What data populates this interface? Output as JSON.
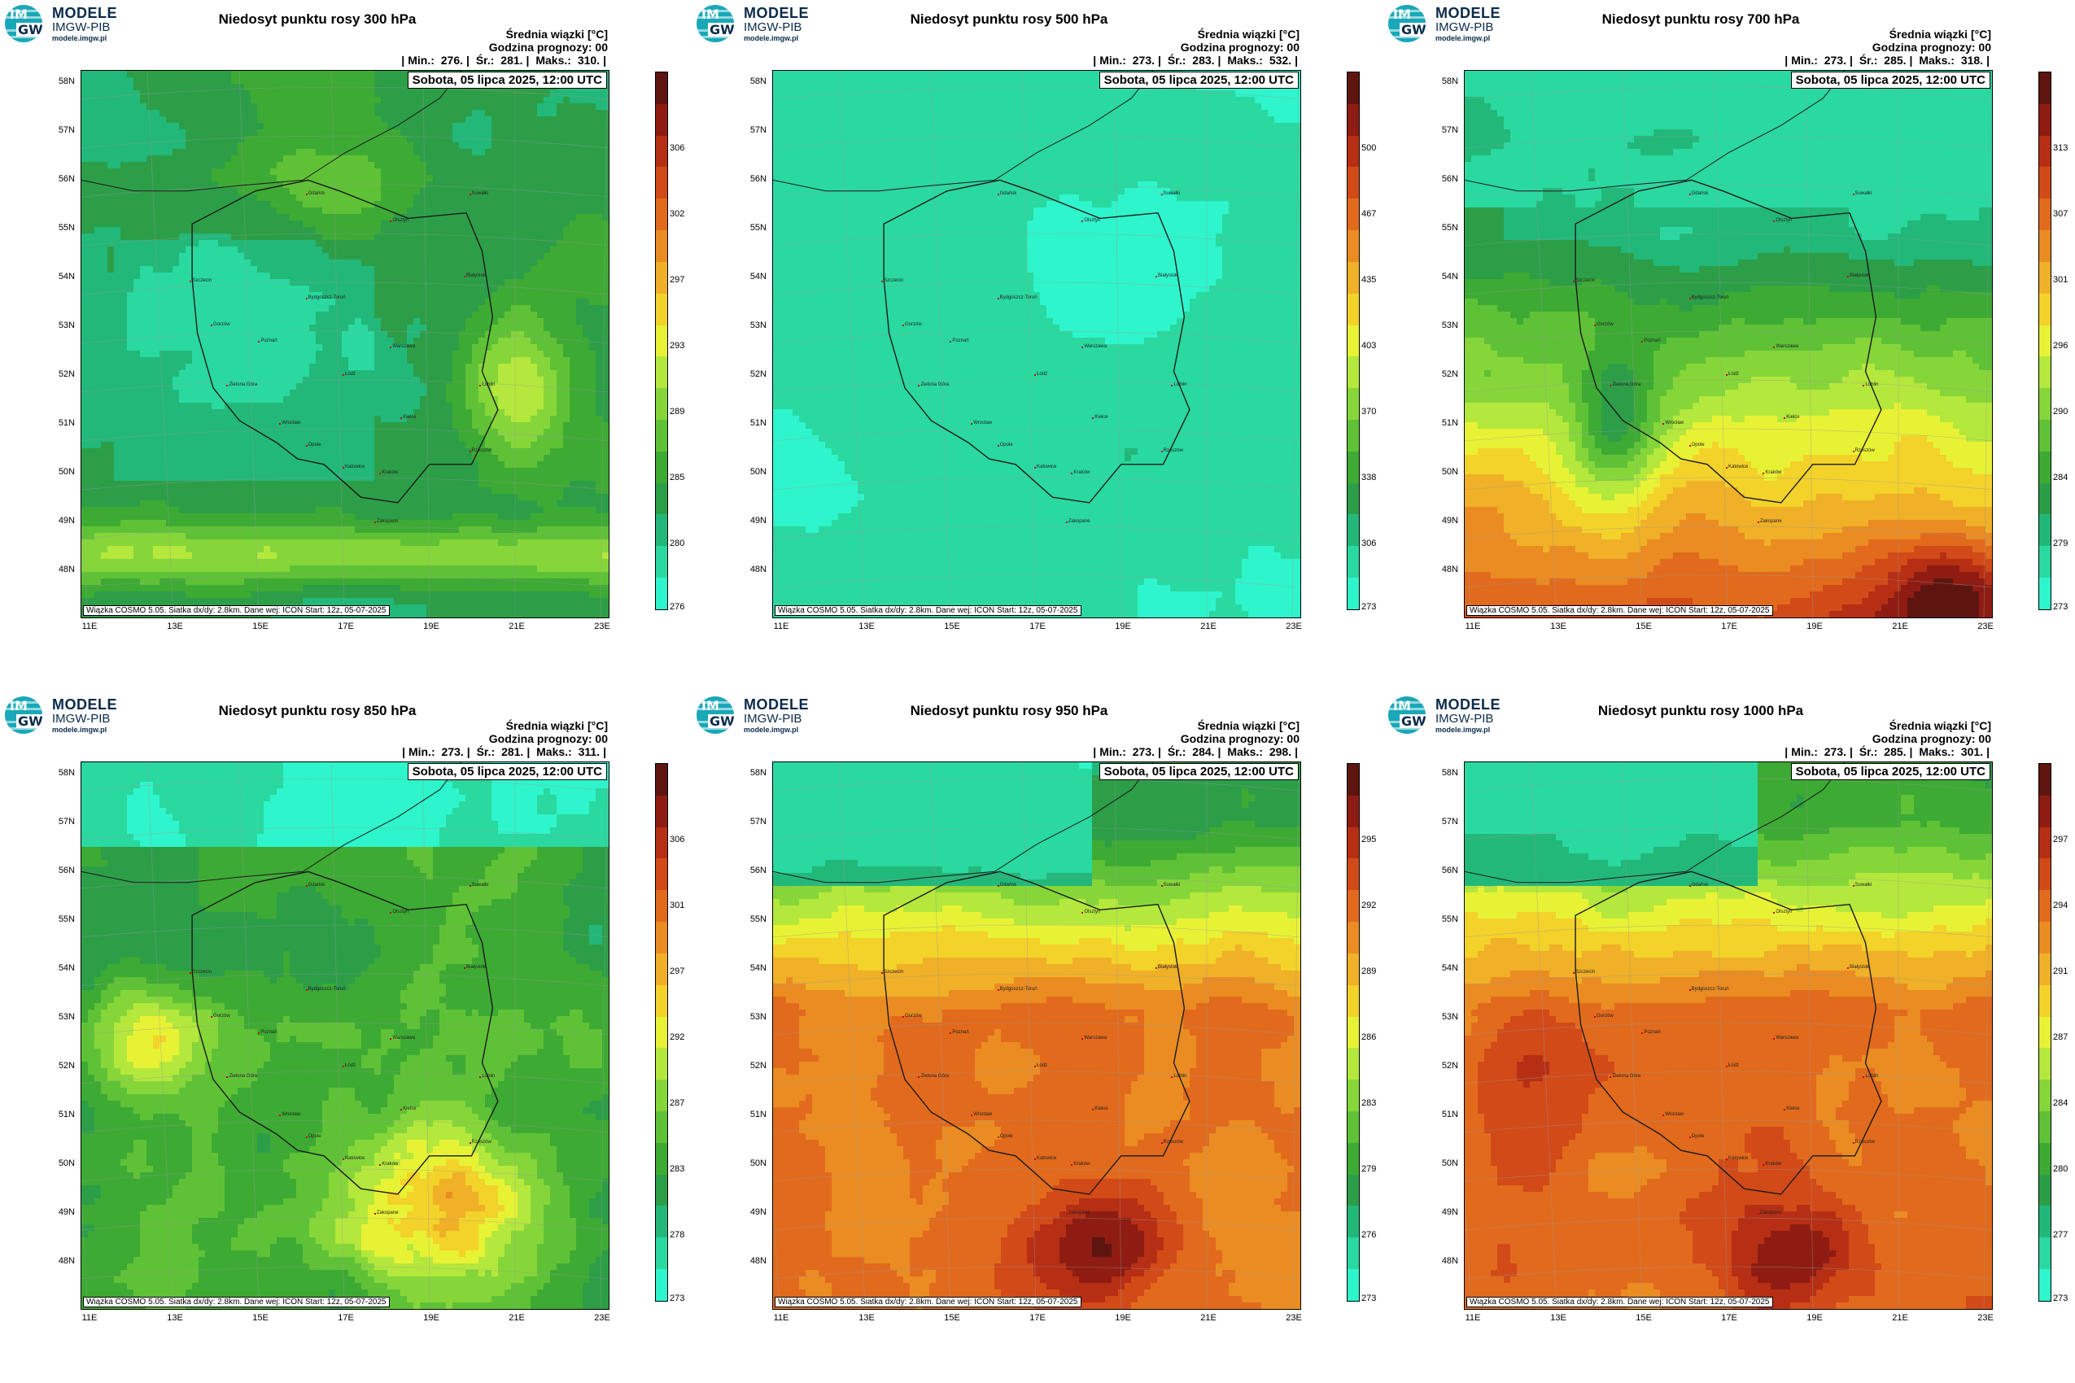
{
  "logo": {
    "title": "MODELE",
    "subtitle": "IMGW-PIB",
    "url": "modele.imgw.pl",
    "mark_top": "IM",
    "mark_bottom": "GW"
  },
  "common": {
    "unit_label": "Średnia wiązki [°C]",
    "forecast_hour": "Godzina prognozy: 00",
    "min_label": "Min.:",
    "mean_label": "Śr.:",
    "max_label": "Maks.:",
    "date": "Sobota, 05 lipca 2025, 12:00 UTC",
    "footer": "Wiązka COSMO 5.05. Siatka dx/dy: 2.8km. Dane wej: ICON Start: 12z, 05-07-2025",
    "lat_labels": [
      "58N",
      "57N",
      "56N",
      "55N",
      "54N",
      "53N",
      "52N",
      "51N",
      "50N",
      "49N",
      "48N"
    ],
    "lon_labels": [
      "11E",
      "13E",
      "15E",
      "17E",
      "19E",
      "21E",
      "23E"
    ],
    "cities": [
      "Gdańsk",
      "Olsztyn",
      "Suwałki",
      "Szczecin",
      "Białystok",
      "Bydgoszcz-Toruń",
      "Gorzów",
      "Poznań",
      "Warszawa",
      "Zielona Góra",
      "Łódź",
      "Lublin",
      "Wrocław",
      "Kielce",
      "Opole",
      "Rzeszów",
      "Katowice",
      "Kraków",
      "Zakopane"
    ]
  },
  "colors": {
    "scale": [
      "#2ef5cc",
      "#29d9a0",
      "#22b879",
      "#2d9e48",
      "#3daa34",
      "#5fc236",
      "#86d63a",
      "#b4e83c",
      "#e8f234",
      "#f3d22a",
      "#f0b027",
      "#ea8c22",
      "#e26a1d",
      "#d24a18",
      "#b62f14",
      "#8e1c12",
      "#5e1510"
    ]
  },
  "panels": [
    {
      "id": "p300",
      "title": "Niedosyt punktu rosy 300 hPa",
      "min": "276.",
      "mean": "281.",
      "max": "310.",
      "ticks": [
        "306",
        "302",
        "297",
        "293",
        "289",
        "285",
        "280",
        "276"
      ],
      "chart_data": {
        "type": "heatmap",
        "level_hPa": 300,
        "min": 276,
        "mean": 281,
        "max": 310,
        "colorbar_ticks": [
          276,
          280,
          285,
          289,
          293,
          297,
          302,
          306
        ]
      }
    },
    {
      "id": "p500",
      "title": "Niedosyt punktu rosy 500 hPa",
      "min": "273.",
      "mean": "283.",
      "max": "532.",
      "ticks": [
        "500",
        "467",
        "435",
        "403",
        "370",
        "338",
        "306",
        "273"
      ],
      "chart_data": {
        "type": "heatmap",
        "level_hPa": 500,
        "min": 273,
        "mean": 283,
        "max": 532,
        "colorbar_ticks": [
          273,
          306,
          338,
          370,
          403,
          435,
          467,
          500
        ]
      }
    },
    {
      "id": "p700",
      "title": "Niedosyt punktu rosy 700 hPa",
      "min": "273.",
      "mean": "285.",
      "max": "318.",
      "ticks": [
        "313",
        "307",
        "301",
        "296",
        "290",
        "284",
        "279",
        "273"
      ],
      "chart_data": {
        "type": "heatmap",
        "level_hPa": 700,
        "min": 273,
        "mean": 285,
        "max": 318,
        "colorbar_ticks": [
          273,
          279,
          284,
          290,
          296,
          301,
          307,
          313
        ]
      }
    },
    {
      "id": "p850",
      "title": "Niedosyt punktu rosy 850 hPa",
      "min": "273.",
      "mean": "281.",
      "max": "311.",
      "ticks": [
        "306",
        "301",
        "297",
        "292",
        "287",
        "283",
        "278",
        "273"
      ],
      "chart_data": {
        "type": "heatmap",
        "level_hPa": 850,
        "min": 273,
        "mean": 281,
        "max": 311,
        "colorbar_ticks": [
          273,
          278,
          283,
          287,
          292,
          297,
          301,
          306
        ]
      }
    },
    {
      "id": "p950",
      "title": "Niedosyt punktu rosy 950 hPa",
      "min": "273.",
      "mean": "284.",
      "max": "298.",
      "ticks": [
        "295",
        "292",
        "289",
        "286",
        "283",
        "279",
        "276",
        "273"
      ],
      "chart_data": {
        "type": "heatmap",
        "level_hPa": 950,
        "min": 273,
        "mean": 284,
        "max": 298,
        "colorbar_ticks": [
          273,
          276,
          279,
          283,
          286,
          289,
          292,
          295
        ]
      }
    },
    {
      "id": "p1000",
      "title": "Niedosyt punktu rosy 1000 hPa",
      "min": "273.",
      "mean": "285.",
      "max": "301.",
      "ticks": [
        "297",
        "294",
        "291",
        "287",
        "284",
        "280",
        "277",
        "273"
      ],
      "chart_data": {
        "type": "heatmap",
        "level_hPa": 1000,
        "min": 273,
        "mean": 285,
        "max": 301,
        "colorbar_ticks": [
          273,
          277,
          280,
          284,
          287,
          291,
          294,
          297
        ]
      }
    }
  ]
}
